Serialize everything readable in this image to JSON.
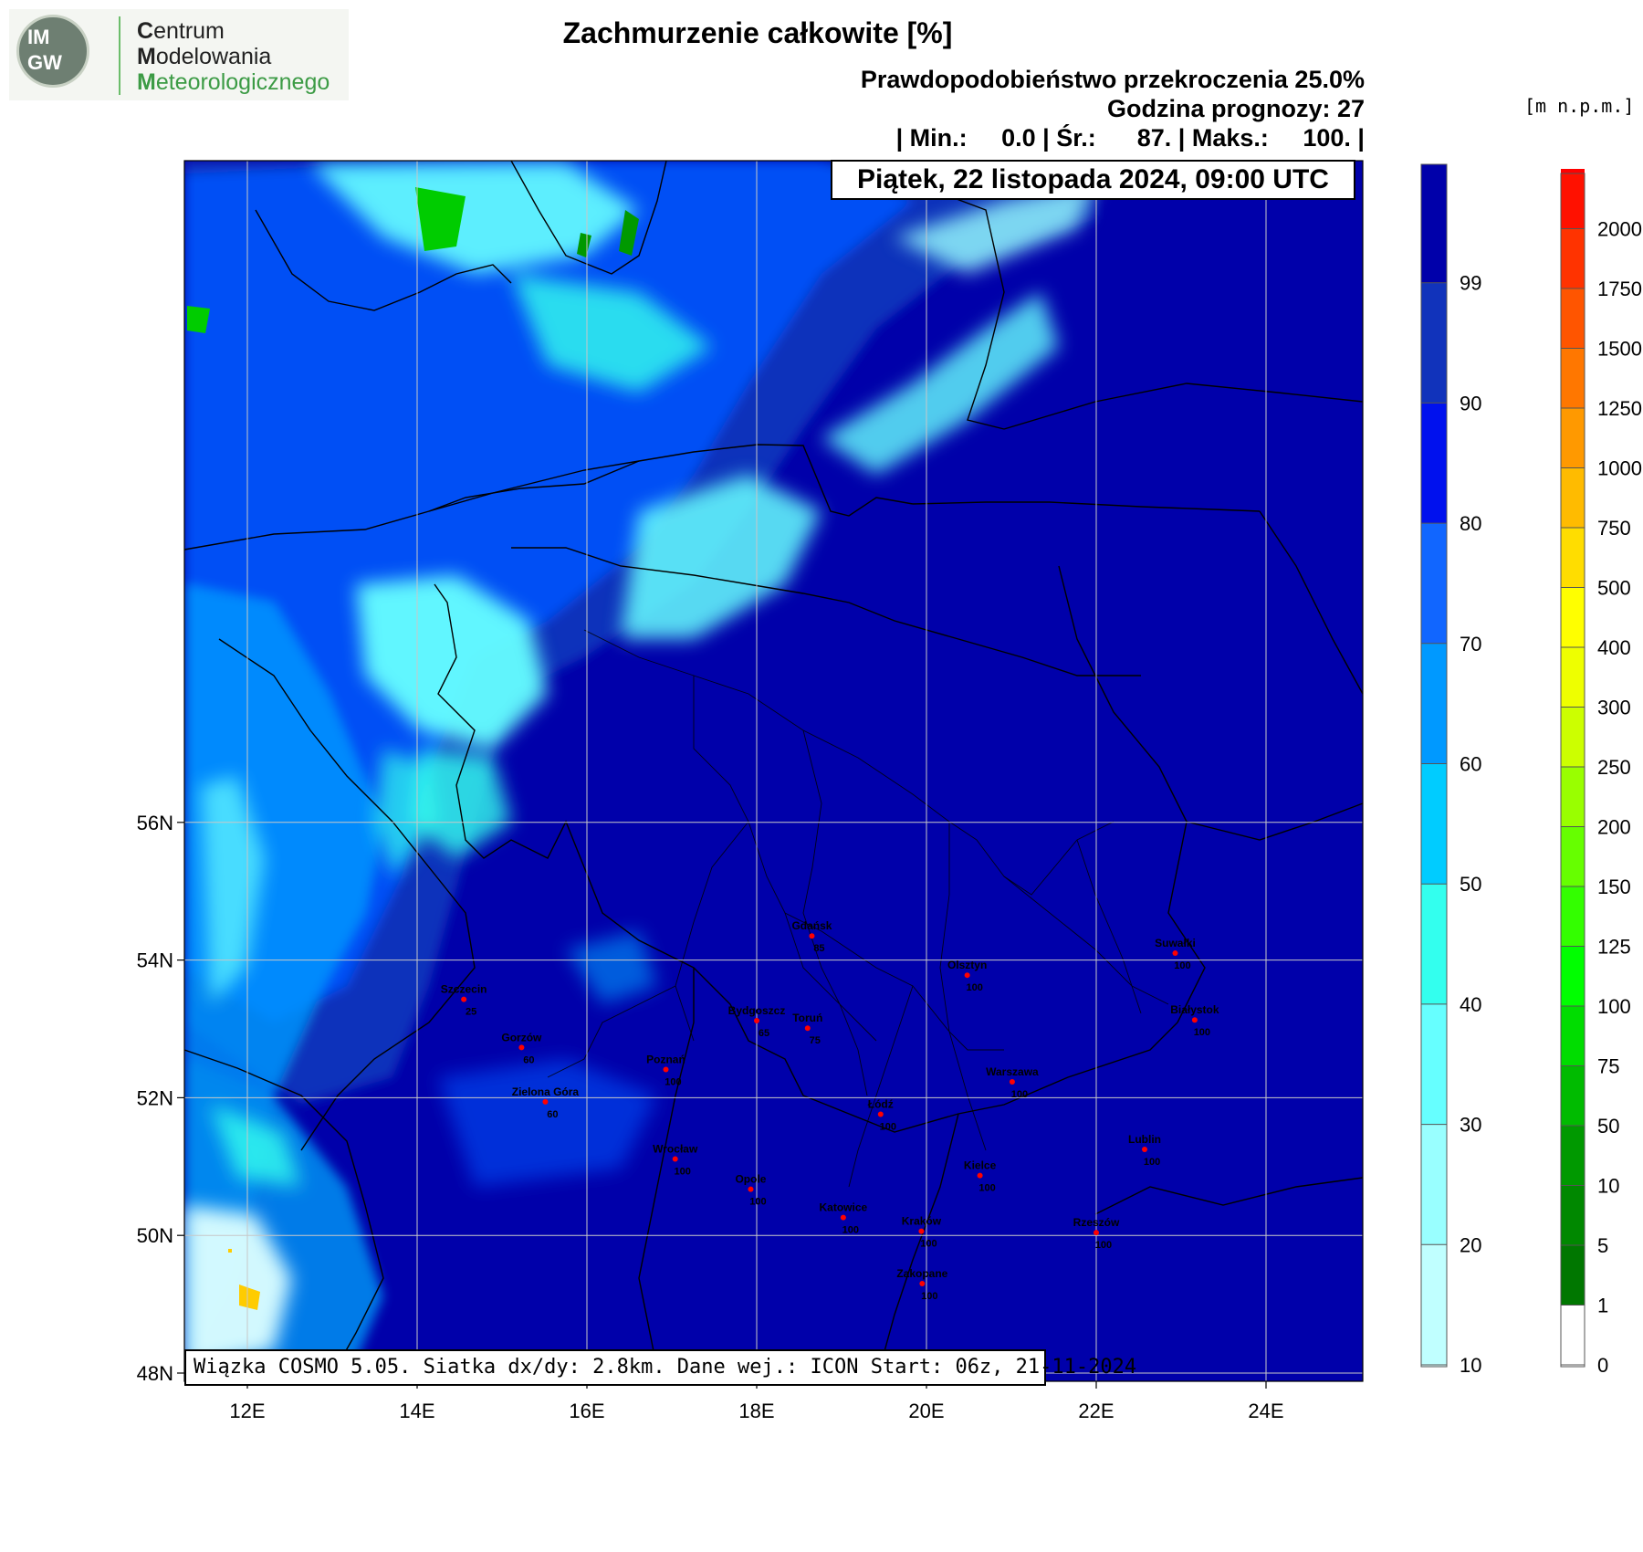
{
  "header": {
    "logo_left": "IM",
    "logo_right": "GW",
    "org_line1_cap": "C",
    "org_line1_rest": "entrum",
    "org_line2_cap": "M",
    "org_line2_rest": "odelowania",
    "org_line3_cap": "M",
    "org_line3_rest": "eteorologicznego",
    "title": "Zachmurzenie całkowite [%]",
    "meta_line1": "Prawdopodobieństwo przekroczenia 25.0%",
    "meta_line2": "Godzina prognozy: 27",
    "meta_line3": "| Min.:     0.0 | Śr.:      87. | Maks.:     100. |"
  },
  "map": {
    "date_label": "Piątek, 22 listopada 2024, 09:00 UTC",
    "footer": "Wiązka COSMO 5.05. Siatka dx/dy: 2.8km. Dane wej.: ICON Start: 06z, 21-11-2024",
    "lat_ticks": [
      {
        "value": 56,
        "label": "56N"
      },
      {
        "value": 54,
        "label": "54N"
      },
      {
        "value": 52,
        "label": "52N"
      },
      {
        "value": 50,
        "label": "50N"
      },
      {
        "value": 48,
        "label": "48N"
      }
    ],
    "lon_ticks": [
      {
        "value": 12,
        "label": "12E"
      },
      {
        "value": 14,
        "label": "14E"
      },
      {
        "value": 16,
        "label": "16E"
      },
      {
        "value": 18,
        "label": "18E"
      },
      {
        "value": 20,
        "label": "20E"
      },
      {
        "value": 22,
        "label": "22E"
      },
      {
        "value": 24,
        "label": "24E"
      }
    ],
    "cities": [
      {
        "name": "Gdańsk",
        "value": "85",
        "lon": 18.65,
        "lat": 54.35
      },
      {
        "name": "Suwałki",
        "value": "100",
        "lon": 22.93,
        "lat": 54.1
      },
      {
        "name": "Olsztyn",
        "value": "100",
        "lon": 20.48,
        "lat": 53.78
      },
      {
        "name": "Szczecin",
        "value": "25",
        "lon": 14.55,
        "lat": 53.43
      },
      {
        "name": "Białystok",
        "value": "100",
        "lon": 23.16,
        "lat": 53.13
      },
      {
        "name": "Bydgoszcz",
        "value": "65",
        "lon": 18.0,
        "lat": 53.12
      },
      {
        "name": "Toruń",
        "value": "75",
        "lon": 18.6,
        "lat": 53.01
      },
      {
        "name": "Gorzów",
        "value": "60",
        "lon": 15.23,
        "lat": 52.73
      },
      {
        "name": "Poznań",
        "value": "100",
        "lon": 16.93,
        "lat": 52.41
      },
      {
        "name": "Warszawa",
        "value": "100",
        "lon": 21.01,
        "lat": 52.23
      },
      {
        "name": "Zielona Góra",
        "value": "60",
        "lon": 15.51,
        "lat": 51.94
      },
      {
        "name": "Łódź",
        "value": "100",
        "lon": 19.46,
        "lat": 51.76
      },
      {
        "name": "Lublin",
        "value": "100",
        "lon": 22.57,
        "lat": 51.25
      },
      {
        "name": "Wrocław",
        "value": "100",
        "lon": 17.04,
        "lat": 51.11
      },
      {
        "name": "Kielce",
        "value": "100",
        "lon": 20.63,
        "lat": 50.87
      },
      {
        "name": "Opole",
        "value": "100",
        "lon": 17.93,
        "lat": 50.67
      },
      {
        "name": "Katowice",
        "value": "100",
        "lon": 19.02,
        "lat": 50.26
      },
      {
        "name": "Kraków",
        "value": "100",
        "lon": 19.94,
        "lat": 50.06
      },
      {
        "name": "Rzeszów",
        "value": "100",
        "lon": 22.0,
        "lat": 50.04
      },
      {
        "name": "Zakopane",
        "value": "100",
        "lon": 19.95,
        "lat": 49.3
      }
    ]
  },
  "cloud_colorbar": {
    "levels": [
      "10",
      "20",
      "30",
      "40",
      "50",
      "60",
      "70",
      "80",
      "90",
      "99"
    ],
    "colors": [
      "#ddffff",
      "#c0ffff",
      "#99ffff",
      "#66ffff",
      "#33ffee",
      "#00ccff",
      "#0099ff",
      "#1166ff",
      "#0011ee",
      "#1133bb",
      "#0000aa"
    ]
  },
  "elevation_colorbar": {
    "units": "[m n.p.m.]",
    "levels": [
      "0",
      "1",
      "5",
      "10",
      "50",
      "75",
      "100",
      "125",
      "150",
      "200",
      "250",
      "300",
      "400",
      "500",
      "750",
      "1000",
      "1250",
      "1500",
      "1750",
      "2000"
    ],
    "colors": [
      "#ffffff",
      "#007700",
      "#008800",
      "#009900",
      "#00bb00",
      "#00dd00",
      "#00ff00",
      "#33ff00",
      "#66ff00",
      "#99ff00",
      "#ccff00",
      "#eeff00",
      "#ffff00",
      "#ffdd00",
      "#ffbb00",
      "#ff9900",
      "#ff7700",
      "#ff5500",
      "#ff3300",
      "#ff1100",
      "#ff0000"
    ]
  }
}
